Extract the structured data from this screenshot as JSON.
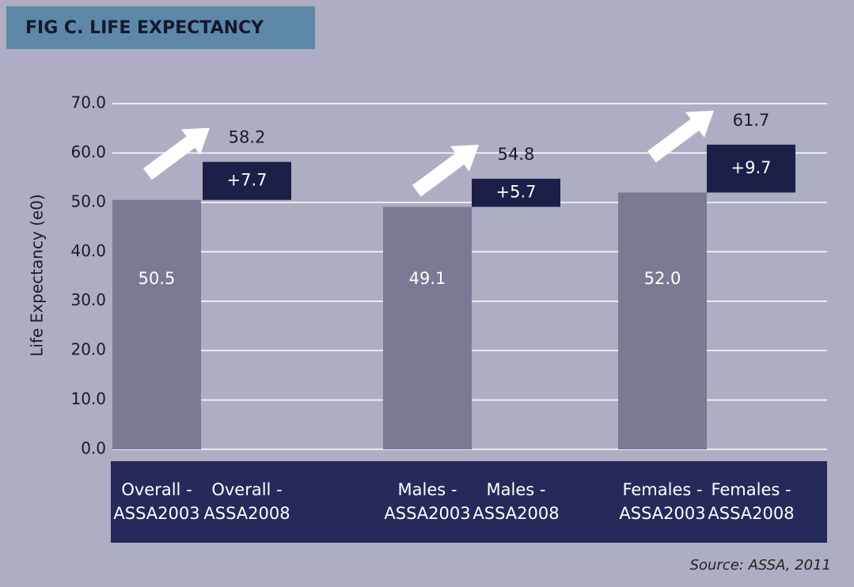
{
  "chart_data": {
    "type": "waterfall",
    "title": "FIG C.  LIFE EXPECTANCY",
    "y_label": "Life Expectancy (e0)",
    "source": "Source: ASSA, 2011",
    "categories": [
      "Overall -\nASSA2003",
      "Overall -\nASSA2008",
      "Males -\nASSA2003",
      "Males -\nASSA2008",
      "Females -\nASSA2003",
      "Females -\nASSA2008"
    ],
    "series": [
      {
        "color": "#7b7a95",
        "values": [
          50.5,
          null,
          49.1,
          null,
          52.0,
          null
        ],
        "value_labels": [
          "50.5",
          null,
          "49.1",
          null,
          "52.0",
          null
        ]
      },
      {
        "color": "#1c2048",
        "values": [
          null,
          7.7,
          null,
          5.7,
          null,
          9.7
        ],
        "value_labels": [
          null,
          "+7.7",
          null,
          "+5.7",
          null,
          "+9.7"
        ]
      }
    ],
    "totals": [
      null,
      58.2,
      null,
      54.8,
      null,
      61.7
    ],
    "ylim": [
      0,
      70
    ],
    "yticks": [
      {
        "value": 0,
        "label": "0.0"
      },
      {
        "value": 10,
        "label": "10.0"
      },
      {
        "value": 20,
        "label": "20.0"
      },
      {
        "value": 30,
        "label": "30.0"
      },
      {
        "value": 40,
        "label": "40.0"
      },
      {
        "value": 50,
        "label": "50.0"
      },
      {
        "value": 60,
        "label": "60.0"
      },
      {
        "value": 70,
        "label": "70.0"
      }
    ],
    "grid": true
  }
}
